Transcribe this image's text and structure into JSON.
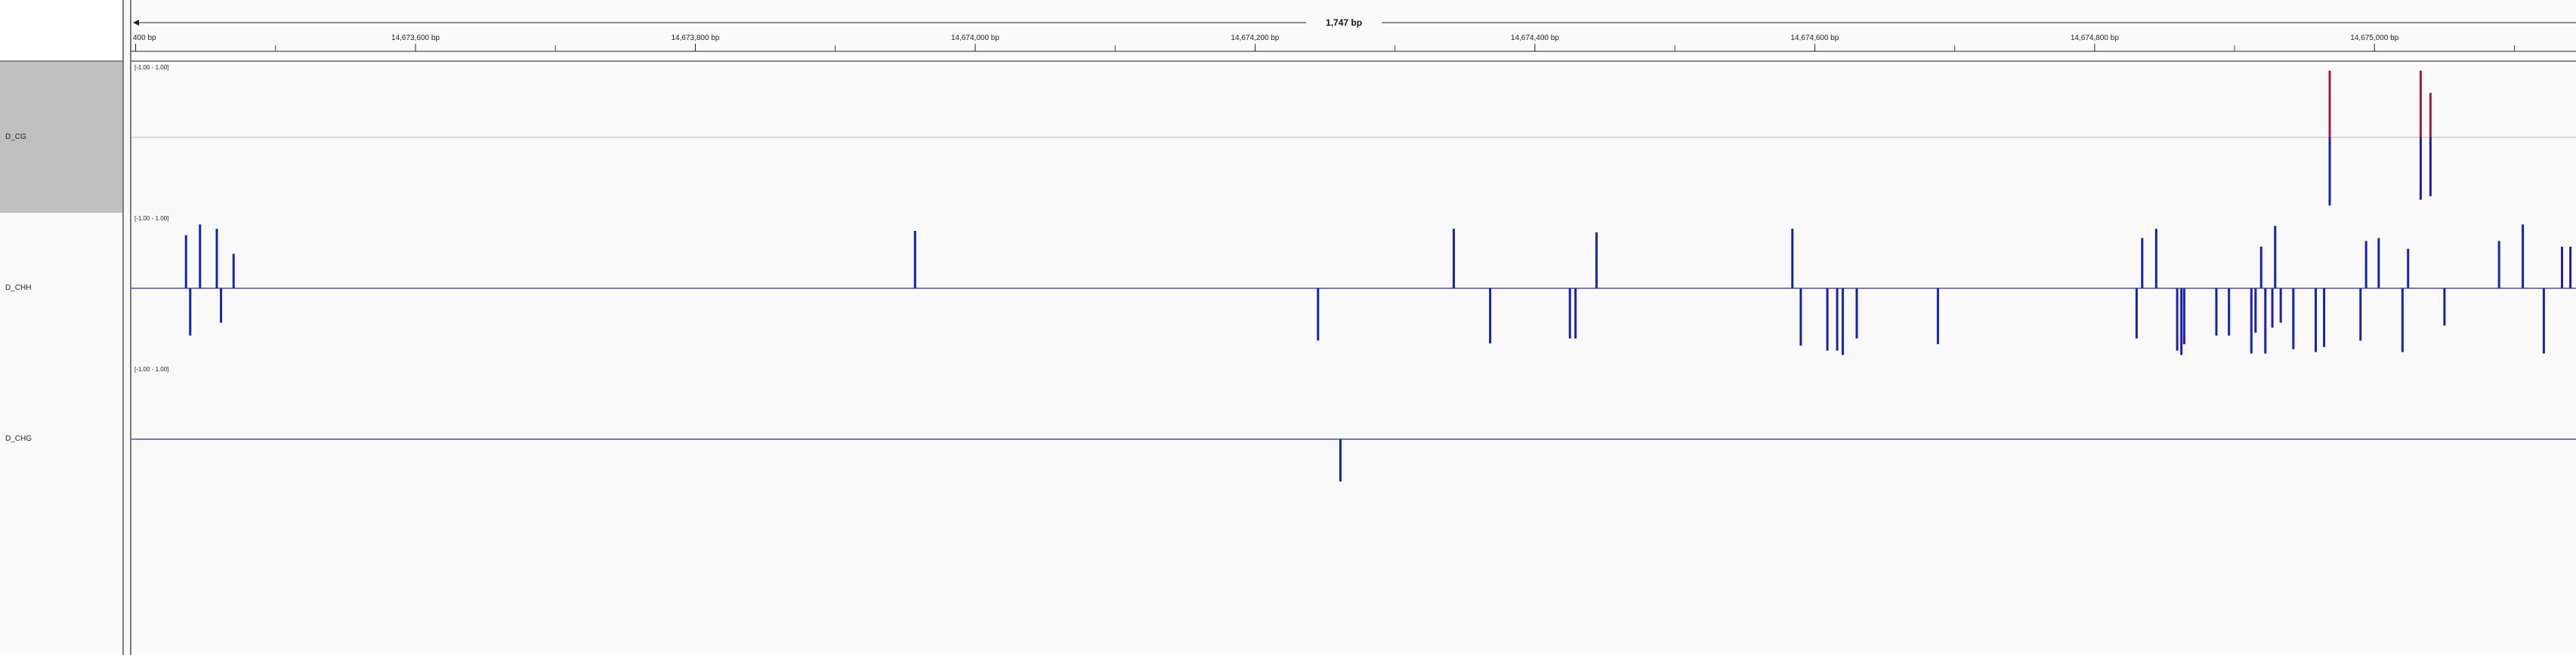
{
  "ruler": {
    "span_label": "1,747 bp",
    "tick_labels": [
      {
        "label": "400 bp",
        "bp": 14673400
      },
      {
        "label": "14,673,600 bp",
        "bp": 14673600
      },
      {
        "label": "14,673,800 bp",
        "bp": 14673800
      },
      {
        "label": "14,674,000 bp",
        "bp": 14674000
      },
      {
        "label": "14,674,200 bp",
        "bp": 14674200
      },
      {
        "label": "14,674,400 bp",
        "bp": 14674400
      },
      {
        "label": "14,674,600 bp",
        "bp": 14674600
      },
      {
        "label": "14,674,800 bp",
        "bp": 14674800
      },
      {
        "label": "14,675,000 bp",
        "bp": 14675000
      }
    ],
    "minor_ticks_bp": [
      14673500,
      14673700,
      14673900,
      14674100,
      14674300,
      14674500,
      14674700,
      14674900,
      14675100
    ],
    "view_start_bp": 14673397,
    "view_end_bp": 14675144
  },
  "colors": {
    "track_line": "#2b2bb0",
    "bar_blue": "#1f1faa",
    "bar_red": "#a01c3a",
    "selected_name_bg": "#c0c0c0"
  },
  "tracks": [
    {
      "name": "D_CG",
      "range_label": "[-1.00 - 1.00]",
      "selected": true,
      "baseline_style": "gray",
      "bars": [
        {
          "bp": 14674968,
          "value": 0.93,
          "color": "red"
        },
        {
          "bp": 14674968,
          "value": -0.95,
          "color": "blue"
        },
        {
          "bp": 14675033,
          "value": 0.93,
          "color": "red"
        },
        {
          "bp": 14675033,
          "value": -0.87,
          "color": "blue"
        },
        {
          "bp": 14675040,
          "value": 0.62,
          "color": "red"
        },
        {
          "bp": 14675040,
          "value": -0.82,
          "color": "blue"
        }
      ]
    },
    {
      "name": "D_CHH",
      "range_label": "[-1.00 - 1.00]",
      "selected": false,
      "baseline_style": "blue",
      "bars": [
        {
          "bp": 14673436,
          "value": 0.74
        },
        {
          "bp": 14673439,
          "value": -0.66
        },
        {
          "bp": 14673446,
          "value": 0.89
        },
        {
          "bp": 14673458,
          "value": 0.83
        },
        {
          "bp": 14673461,
          "value": -0.48
        },
        {
          "bp": 14673470,
          "value": 0.48
        },
        {
          "bp": 14673957,
          "value": 0.8
        },
        {
          "bp": 14674245,
          "value": -0.73
        },
        {
          "bp": 14674342,
          "value": 0.83
        },
        {
          "bp": 14674368,
          "value": -0.77
        },
        {
          "bp": 14674425,
          "value": -0.7
        },
        {
          "bp": 14674429,
          "value": -0.7
        },
        {
          "bp": 14674444,
          "value": 0.78
        },
        {
          "bp": 14674584,
          "value": 0.83
        },
        {
          "bp": 14674590,
          "value": -0.8
        },
        {
          "bp": 14674609,
          "value": -0.87
        },
        {
          "bp": 14674616,
          "value": -0.87
        },
        {
          "bp": 14674620,
          "value": -0.93
        },
        {
          "bp": 14674630,
          "value": -0.7
        },
        {
          "bp": 14674688,
          "value": -0.78
        },
        {
          "bp": 14674830,
          "value": -0.7
        },
        {
          "bp": 14674834,
          "value": 0.7
        },
        {
          "bp": 14674844,
          "value": 0.83
        },
        {
          "bp": 14674859,
          "value": -0.87
        },
        {
          "bp": 14674862,
          "value": -0.93
        },
        {
          "bp": 14674864,
          "value": -0.78
        },
        {
          "bp": 14674887,
          "value": -0.66
        },
        {
          "bp": 14674896,
          "value": -0.66
        },
        {
          "bp": 14674912,
          "value": -0.91
        },
        {
          "bp": 14674915,
          "value": -0.62
        },
        {
          "bp": 14674919,
          "value": 0.58
        },
        {
          "bp": 14674922,
          "value": -0.91
        },
        {
          "bp": 14674927,
          "value": -0.55
        },
        {
          "bp": 14674929,
          "value": 0.87
        },
        {
          "bp": 14674933,
          "value": -0.48
        },
        {
          "bp": 14674942,
          "value": -0.85
        },
        {
          "bp": 14674958,
          "value": -0.89
        },
        {
          "bp": 14674964,
          "value": -0.82
        },
        {
          "bp": 14674990,
          "value": -0.73
        },
        {
          "bp": 14674994,
          "value": 0.66
        },
        {
          "bp": 14675003,
          "value": 0.7
        },
        {
          "bp": 14675020,
          "value": -0.89
        },
        {
          "bp": 14675024,
          "value": 0.55
        },
        {
          "bp": 14675050,
          "value": -0.52
        },
        {
          "bp": 14675089,
          "value": 0.66
        },
        {
          "bp": 14675106,
          "value": 0.89
        },
        {
          "bp": 14675121,
          "value": -0.91
        },
        {
          "bp": 14675134,
          "value": 0.58
        },
        {
          "bp": 14675140,
          "value": 0.58
        }
      ]
    },
    {
      "name": "D_CHG",
      "range_label": "[-1.00 - 1.00]",
      "selected": false,
      "baseline_style": "blue",
      "bars": [
        {
          "bp": 14674261,
          "value": -0.59
        }
      ]
    }
  ]
}
